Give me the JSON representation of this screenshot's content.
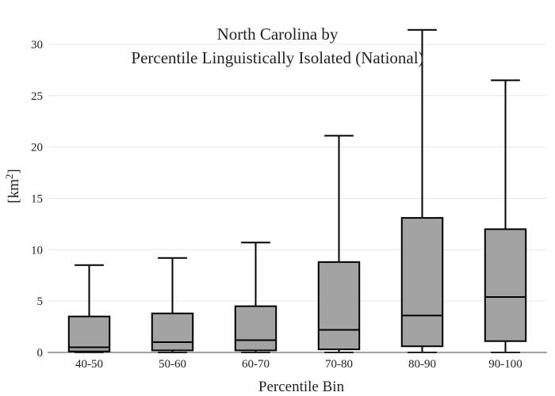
{
  "chart_data": {
    "type": "box",
    "title_line1": "North Carolina  by",
    "title_line2": "Percentile Linguistically Isolated (National)",
    "xlabel": "Percentile Bin",
    "ylabel_base": "[km",
    "ylabel_sup": "2",
    "ylabel_end": "]",
    "ylim": [
      0,
      32
    ],
    "yticks": [
      0,
      5,
      10,
      15,
      20,
      25,
      30
    ],
    "grid": true,
    "colors": {
      "box_fill": "#a3a3a3",
      "box_stroke": "#000000",
      "grid": "#e8e8e8"
    },
    "categories": [
      "40-50",
      "50-60",
      "60-70",
      "70-80",
      "80-90",
      "90-100"
    ],
    "boxes": [
      {
        "min": 0.0,
        "q1": 0.1,
        "median": 0.5,
        "q3": 3.5,
        "max": 8.5
      },
      {
        "min": 0.0,
        "q1": 0.2,
        "median": 1.0,
        "q3": 3.8,
        "max": 9.2
      },
      {
        "min": 0.0,
        "q1": 0.2,
        "median": 1.2,
        "q3": 4.5,
        "max": 10.7
      },
      {
        "min": 0.0,
        "q1": 0.3,
        "median": 2.2,
        "q3": 8.8,
        "max": 21.1
      },
      {
        "min": 0.0,
        "q1": 0.6,
        "median": 3.6,
        "q3": 13.1,
        "max": 31.4
      },
      {
        "min": 0.0,
        "q1": 1.1,
        "median": 5.4,
        "q3": 12.0,
        "max": 26.5
      }
    ]
  }
}
